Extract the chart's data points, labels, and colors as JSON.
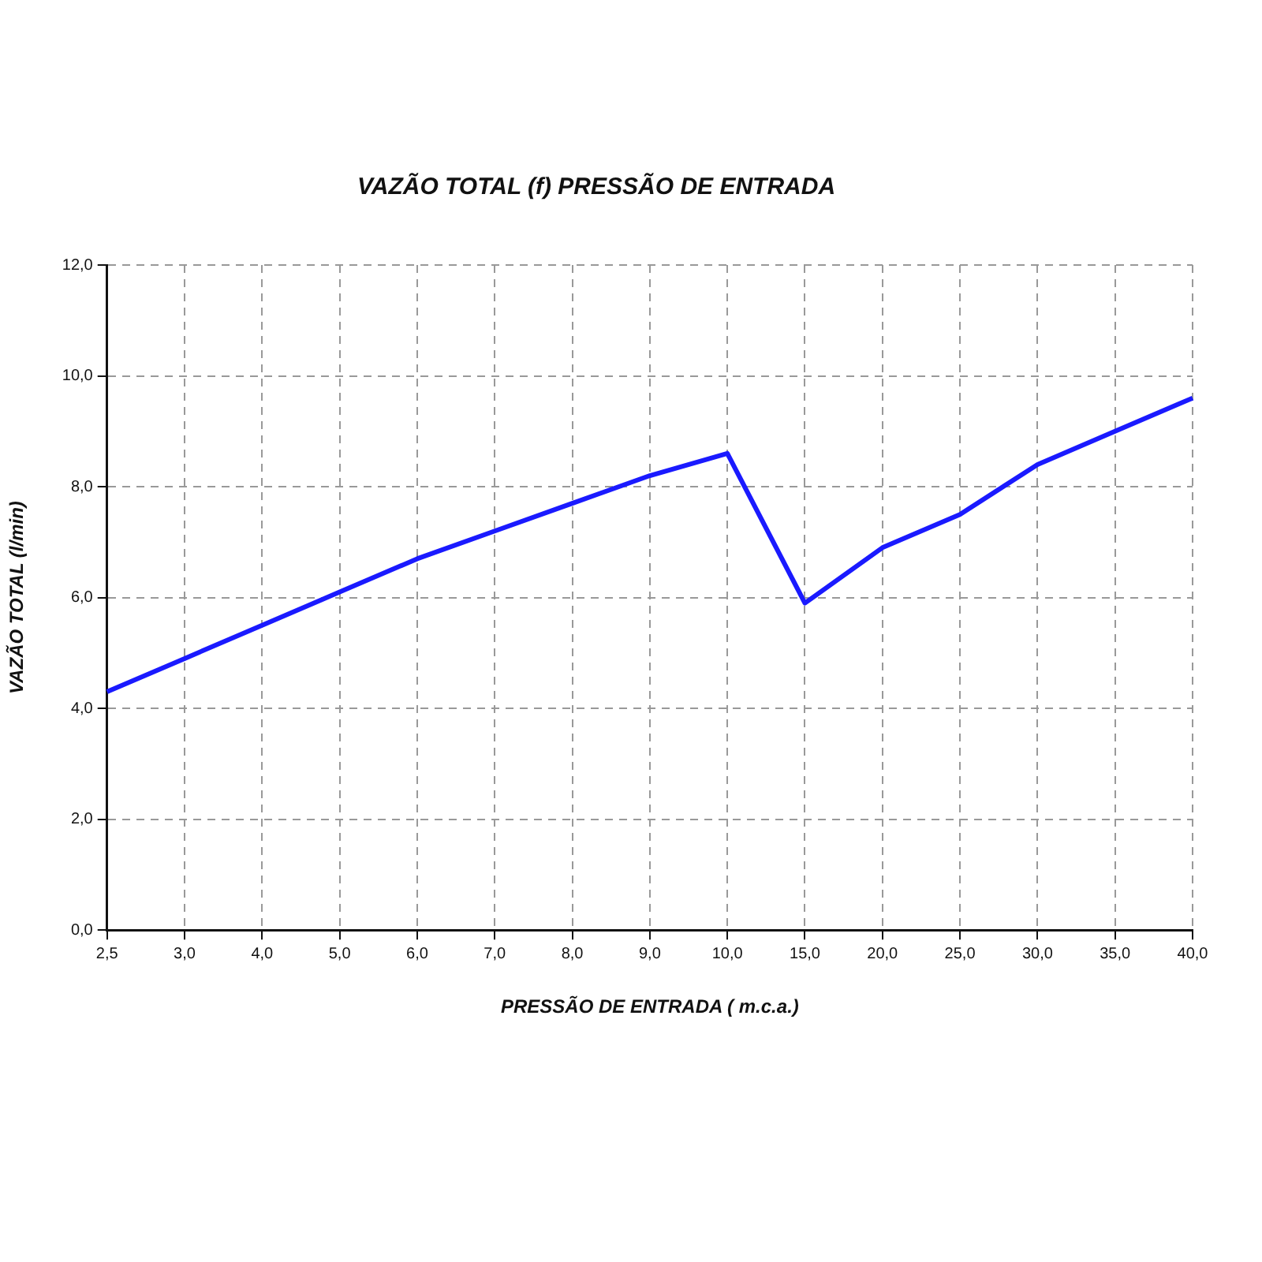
{
  "chart_data": {
    "type": "line",
    "title": "VAZÃO TOTAL (f) PRESSÃO DE ENTRADA",
    "xlabel": "PRESSÃO DE ENTRADA ( m.c.a.)",
    "ylabel": "VAZÃO TOTAL (l/min)",
    "categories": [
      "2,5",
      "3,0",
      "4,0",
      "5,0",
      "6,0",
      "7,0",
      "8,0",
      "9,0",
      "10,0",
      "15,0",
      "20,0",
      "25,0",
      "30,0",
      "35,0",
      "40,0"
    ],
    "series": [
      {
        "color": "#1a1aff",
        "values": [
          4.3,
          4.9,
          5.5,
          6.1,
          6.7,
          7.2,
          7.7,
          8.2,
          8.6,
          5.9,
          6.9,
          7.5,
          8.4,
          9.0,
          9.6
        ]
      }
    ],
    "ylim": [
      0,
      12
    ],
    "yticks": [
      {
        "value": 0,
        "label": "0,0"
      },
      {
        "value": 2,
        "label": "2,0"
      },
      {
        "value": 4,
        "label": "4,0"
      },
      {
        "value": 6,
        "label": "6,0"
      },
      {
        "value": 8,
        "label": "8,0"
      },
      {
        "value": 10,
        "label": "10,0"
      },
      {
        "value": 12,
        "label": "12,0"
      }
    ],
    "grid": true,
    "legend": false,
    "marker": "none",
    "line_style": "solid"
  }
}
